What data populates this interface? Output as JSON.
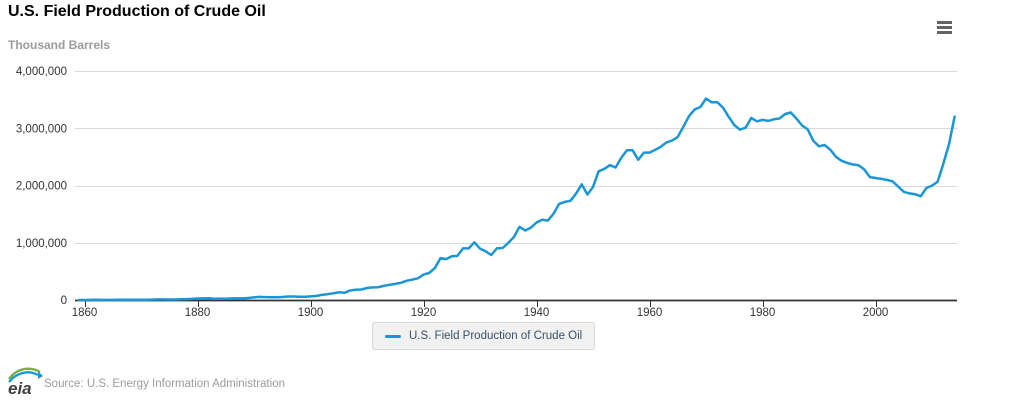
{
  "header": {
    "title": "U.S. Field Production of Crude Oil",
    "subtitle": "Thousand Barrels"
  },
  "icons": {
    "menu": "hamburger-menu"
  },
  "legend": {
    "label": "U.S. Field Production of Crude Oil"
  },
  "footer": {
    "logo_text": "eia",
    "source": "Source: U.S. Energy Information Administration"
  },
  "colors": {
    "line": "#1a96d4",
    "grid": "#d9d9d9",
    "axis": "#333333",
    "tick_label": "#333333",
    "subtitle": "#9a9a9a",
    "legend_text": "#35506b",
    "legend_bg": "#f1f1f1",
    "legend_border": "#d9d9d9",
    "source_text": "#9b9b9b",
    "logo_green": "#76b043",
    "logo_blue": "#1a96d4",
    "logo_text": "#404040"
  },
  "chart_data": {
    "type": "line",
    "title": "U.S. Field Production of Crude Oil",
    "ylabel": "Thousand Barrels",
    "xlabel": "",
    "grid": true,
    "legend_position": "bottom",
    "xlim": [
      1859,
      2014
    ],
    "ylim": [
      0,
      4000000
    ],
    "y_ticks": [
      0,
      1000000,
      2000000,
      3000000,
      4000000
    ],
    "x_ticks": [
      1860,
      1880,
      1900,
      1920,
      1940,
      1960,
      1980,
      2000
    ],
    "series": [
      {
        "name": "U.S. Field Production of Crude Oil",
        "x_start": 1859,
        "x_end": 2014,
        "x_step": 1,
        "values": [
          2,
          500,
          2114,
          3057,
          2611,
          2116,
          2498,
          3598,
          3347,
          3646,
          4215,
          5261,
          5205,
          6293,
          9894,
          10927,
          8788,
          9133,
          13350,
          15397,
          19914,
          26286,
          27661,
          30350,
          23450,
          24218,
          21859,
          28065,
          28283,
          27612,
          35164,
          45824,
          54293,
          50515,
          48431,
          49344,
          52892,
          60960,
          60476,
          55364,
          57071,
          63621,
          69389,
          88767,
          100461,
          117081,
          134717,
          126494,
          166095,
          178527,
          183171,
          209557,
          220449,
          222935,
          248446,
          265763,
          281104,
          300767,
          335316,
          355928,
          378367,
          442929,
          472183,
          557531,
          732407,
          713940,
          763743,
          770874,
          901129,
          901474,
          1007323,
          898011,
          851081,
          785159,
          905656,
          908065,
          996596,
          1099687,
          1279160,
          1214355,
          1264962,
          1353214,
          1402228,
          1386645,
          1505613,
          1677904,
          1713655,
          1733590,
          1856987,
          2020185,
          1841940,
          1973574,
          2247711,
          2289836,
          2357082,
          2314988,
          2484428,
          2617283,
          2616901,
          2448987,
          2574590,
          2574933,
          2621758,
          2676189,
          2752723,
          2786822,
          2848514,
          3027763,
          3215742,
          3329042,
          3371751,
          3517450,
          3453914,
          3455368,
          3360903,
          3202585,
          3056779,
          2976180,
          3009265,
          3178216,
          3121310,
          3146365,
          3128624,
          3156715,
          3170999,
          3249696,
          3274553,
          3168252,
          3047378,
          2979123,
          2778773,
          2684687,
          2707039,
          2624632,
          2499033,
          2431476,
          2394268,
          2366017,
          2354831,
          2281919,
          2146732,
          2130707,
          2117511,
          2097124,
          2073453,
          1983302,
          1890106,
          1862259,
          1848450,
          1811817,
          1956596,
          1998137,
          2065231,
          2377890,
          2720782,
          3203311
        ]
      }
    ]
  }
}
